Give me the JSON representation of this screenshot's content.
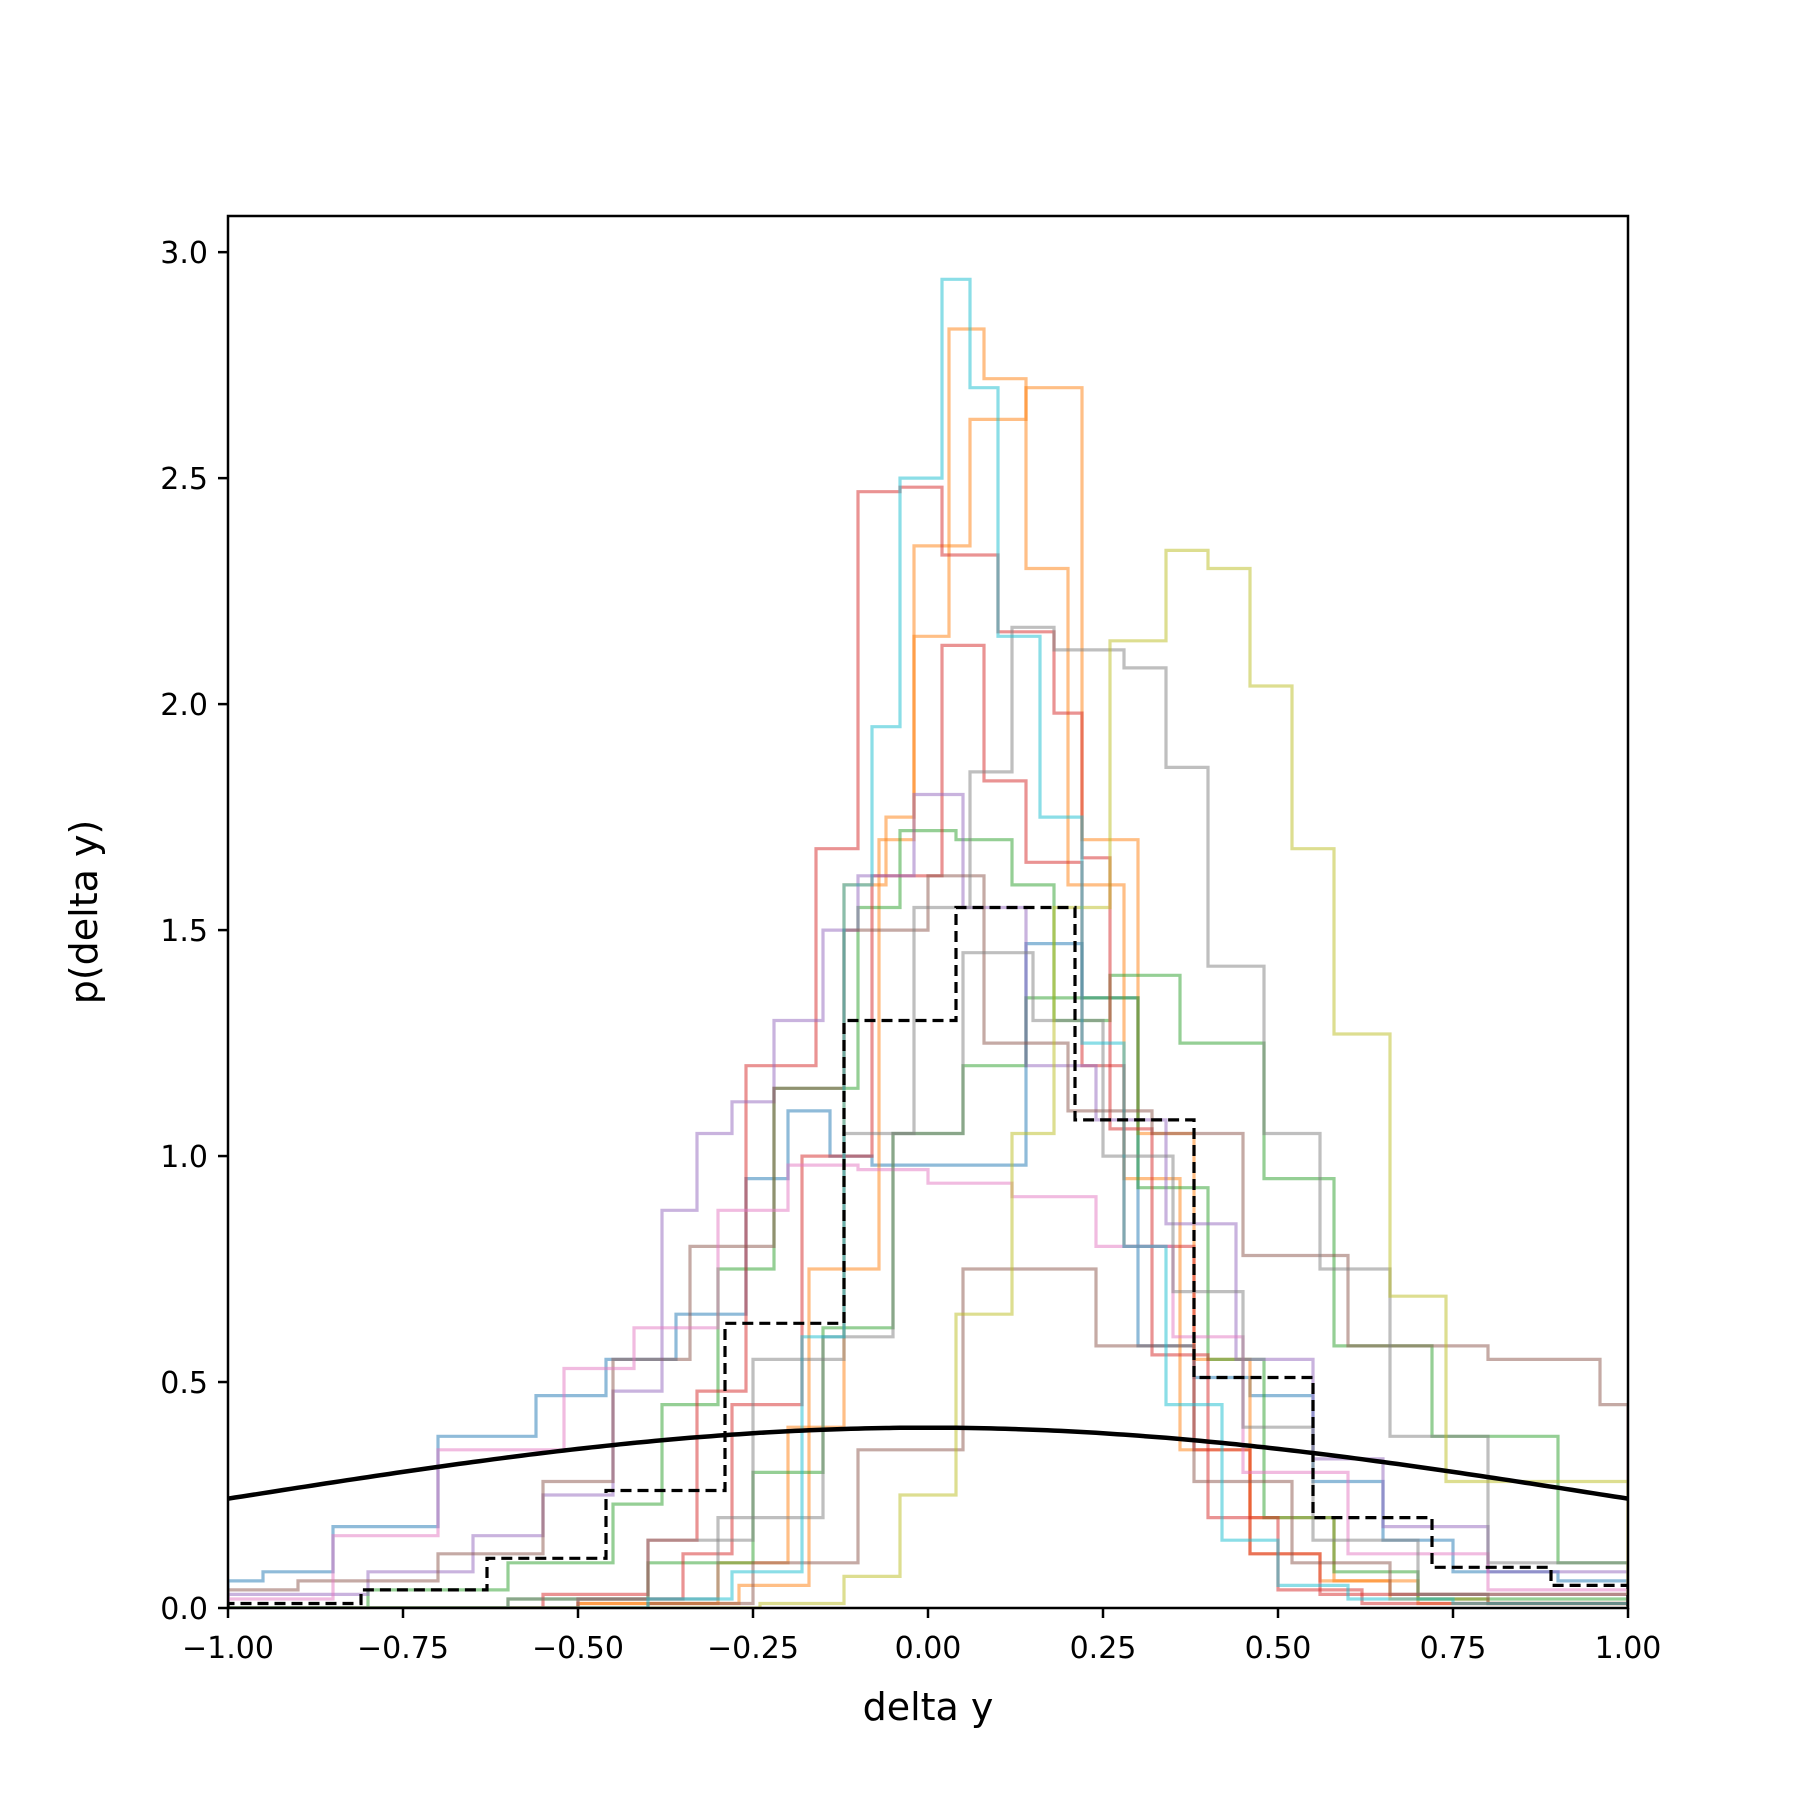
{
  "chart_data": {
    "type": "histogram",
    "title": "",
    "xlabel": "delta y",
    "ylabel": "p(delta y)",
    "xlim": [
      -1.0,
      1.0
    ],
    "ylim": [
      0.0,
      3.08
    ],
    "xticks": [
      -1.0,
      -0.75,
      -0.5,
      -0.25,
      0.0,
      0.25,
      0.5,
      0.75,
      1.0
    ],
    "xtick_labels": [
      "−1.00",
      "−0.75",
      "−0.50",
      "−0.25",
      "0.00",
      "0.25",
      "0.50",
      "0.75",
      "1.00"
    ],
    "yticks": [
      0.0,
      0.5,
      1.0,
      1.5,
      2.0,
      2.5,
      3.0
    ],
    "ytick_labels": [
      "0.0",
      "0.5",
      "1.0",
      "1.5",
      "2.0",
      "2.5",
      "3.0"
    ],
    "grid": false,
    "legend": "none",
    "series": [
      {
        "color": "#1f77b4",
        "edges": [
          -1.0,
          -0.95,
          -0.85,
          -0.7,
          -0.56,
          -0.46,
          -0.36,
          -0.26,
          -0.2,
          -0.14,
          -0.08,
          0.0,
          0.14,
          0.22,
          0.3,
          0.38,
          0.46,
          0.55,
          0.65,
          0.75,
          0.9,
          1.0
        ],
        "values": [
          0.06,
          0.08,
          0.18,
          0.38,
          0.47,
          0.55,
          0.65,
          0.95,
          1.1,
          1.0,
          0.98,
          0.98,
          1.47,
          1.35,
          0.58,
          0.51,
          0.47,
          0.28,
          0.15,
          0.08,
          0.06
        ]
      },
      {
        "color": "#ff7f0e",
        "edges": [
          -1.0,
          -0.5,
          -0.27,
          -0.17,
          -0.07,
          -0.02,
          0.03,
          0.08,
          0.14,
          0.2,
          0.28,
          0.36,
          0.46,
          0.56,
          0.66,
          0.8,
          1.0
        ],
        "values": [
          0.0,
          0.01,
          0.05,
          0.75,
          1.7,
          2.15,
          2.83,
          2.72,
          2.3,
          1.6,
          0.95,
          0.35,
          0.12,
          0.06,
          0.02,
          0.01
        ]
      },
      {
        "color": "#ff7f0e",
        "edges": [
          -1.0,
          -0.5,
          -0.3,
          -0.2,
          -0.12,
          -0.06,
          -0.02,
          0.06,
          0.14,
          0.22,
          0.3,
          0.38,
          0.46,
          0.58,
          0.7,
          1.0
        ],
        "values": [
          0.0,
          0.01,
          0.1,
          0.4,
          1.6,
          1.75,
          2.35,
          2.63,
          2.7,
          1.7,
          1.05,
          0.55,
          0.2,
          0.06,
          0.01
        ]
      },
      {
        "color": "#2ca02c",
        "edges": [
          -1.0,
          -0.8,
          -0.6,
          -0.45,
          -0.38,
          -0.3,
          -0.22,
          -0.1,
          -0.04,
          0.04,
          0.12,
          0.18,
          0.26,
          0.36,
          0.48,
          0.58,
          0.72,
          0.9,
          1.0
        ],
        "values": [
          0.0,
          0.04,
          0.1,
          0.23,
          0.45,
          0.75,
          1.15,
          1.55,
          1.72,
          1.7,
          1.6,
          1.3,
          1.4,
          1.25,
          0.95,
          0.58,
          0.38,
          0.1
        ]
      },
      {
        "color": "#2ca02c",
        "edges": [
          -1.0,
          -0.6,
          -0.4,
          -0.25,
          -0.15,
          -0.05,
          0.05,
          0.14,
          0.22,
          0.3,
          0.4,
          0.48,
          0.58,
          0.7,
          1.0
        ],
        "values": [
          0.0,
          0.02,
          0.1,
          0.3,
          0.62,
          1.05,
          1.2,
          1.35,
          1.35,
          0.93,
          0.55,
          0.2,
          0.08,
          0.02
        ]
      },
      {
        "color": "#d62728",
        "edges": [
          -1.0,
          -0.55,
          -0.4,
          -0.33,
          -0.26,
          -0.16,
          -0.1,
          -0.04,
          0.02,
          0.1,
          0.18,
          0.22,
          0.26,
          0.32,
          0.4,
          0.5,
          0.62,
          1.0
        ],
        "values": [
          0.0,
          0.03,
          0.15,
          0.48,
          1.2,
          1.68,
          2.47,
          2.48,
          2.33,
          2.16,
          1.98,
          1.66,
          1.06,
          0.56,
          0.2,
          0.04,
          0.01
        ]
      },
      {
        "color": "#d62728",
        "edges": [
          -1.0,
          -0.5,
          -0.35,
          -0.28,
          -0.18,
          -0.08,
          0.02,
          0.08,
          0.14,
          0.22,
          0.28,
          0.38,
          0.46,
          0.56,
          1.0
        ],
        "values": [
          0.0,
          0.02,
          0.12,
          0.45,
          1.0,
          1.62,
          2.13,
          1.83,
          1.65,
          1.2,
          0.8,
          0.35,
          0.12,
          0.03
        ]
      },
      {
        "color": "#9467bd",
        "edges": [
          -1.0,
          -0.8,
          -0.65,
          -0.55,
          -0.45,
          -0.38,
          -0.33,
          -0.28,
          -0.22,
          -0.15,
          -0.1,
          -0.02,
          0.05,
          0.14,
          0.24,
          0.34,
          0.44,
          0.55,
          0.65,
          0.8,
          1.0
        ],
        "values": [
          0.03,
          0.08,
          0.16,
          0.25,
          0.48,
          0.88,
          1.05,
          1.12,
          1.3,
          1.5,
          1.62,
          1.8,
          1.55,
          1.2,
          1.08,
          0.85,
          0.55,
          0.33,
          0.18,
          0.08
        ]
      },
      {
        "color": "#8c564b",
        "edges": [
          -1.0,
          -0.9,
          -0.7,
          -0.55,
          -0.45,
          -0.34,
          -0.22,
          -0.12,
          0.0,
          0.08,
          0.2,
          0.32,
          0.45,
          0.6,
          0.8,
          0.96,
          1.0
        ],
        "values": [
          0.04,
          0.06,
          0.12,
          0.28,
          0.55,
          0.8,
          1.15,
          1.5,
          1.62,
          1.25,
          1.1,
          1.05,
          0.78,
          0.58,
          0.55,
          0.45
        ]
      },
      {
        "color": "#8c564b",
        "edges": [
          -1.0,
          -0.4,
          -0.25,
          -0.1,
          0.05,
          0.12,
          0.24,
          0.38,
          0.52,
          0.66,
          0.8,
          1.0
        ],
        "values": [
          0.0,
          0.01,
          0.1,
          0.35,
          0.75,
          0.75,
          0.58,
          0.28,
          0.1,
          0.03,
          0.01
        ]
      },
      {
        "color": "#e377c2",
        "edges": [
          -1.0,
          -0.85,
          -0.7,
          -0.52,
          -0.42,
          -0.3,
          -0.2,
          -0.1,
          0.0,
          0.12,
          0.24,
          0.35,
          0.45,
          0.6,
          0.8,
          1.0
        ],
        "values": [
          0.02,
          0.16,
          0.35,
          0.53,
          0.62,
          0.88,
          0.98,
          0.97,
          0.94,
          0.91,
          0.8,
          0.6,
          0.3,
          0.12,
          0.04
        ]
      },
      {
        "color": "#7f7f7f",
        "edges": [
          -1.0,
          -0.6,
          -0.4,
          -0.25,
          -0.12,
          -0.02,
          0.06,
          0.12,
          0.18,
          0.28,
          0.34,
          0.4,
          0.48,
          0.56,
          0.66,
          0.8,
          1.0
        ],
        "values": [
          0.0,
          0.02,
          0.15,
          0.55,
          1.05,
          1.55,
          1.85,
          2.17,
          2.12,
          2.08,
          1.86,
          1.42,
          1.05,
          0.75,
          0.38,
          0.1
        ]
      },
      {
        "color": "#7f7f7f",
        "edges": [
          -1.0,
          -0.5,
          -0.3,
          -0.15,
          -0.05,
          0.05,
          0.15,
          0.25,
          0.35,
          0.45,
          0.55,
          0.7,
          1.0
        ],
        "values": [
          0.0,
          0.02,
          0.2,
          0.6,
          1.05,
          1.45,
          1.3,
          1.0,
          0.7,
          0.4,
          0.15,
          0.03
        ]
      },
      {
        "color": "#bcbd22",
        "edges": [
          -1.0,
          -0.24,
          -0.12,
          -0.04,
          0.04,
          0.12,
          0.18,
          0.26,
          0.34,
          0.4,
          0.46,
          0.52,
          0.58,
          0.66,
          0.74,
          1.0
        ],
        "values": [
          0.0,
          0.01,
          0.07,
          0.25,
          0.65,
          1.05,
          1.55,
          2.14,
          2.34,
          2.3,
          2.04,
          1.68,
          1.27,
          0.69,
          0.28
        ]
      },
      {
        "color": "#17becf",
        "edges": [
          -1.0,
          -0.4,
          -0.28,
          -0.18,
          -0.12,
          -0.08,
          -0.04,
          0.02,
          0.06,
          0.1,
          0.16,
          0.22,
          0.28,
          0.34,
          0.42,
          0.5,
          0.6,
          0.75,
          1.0
        ],
        "values": [
          0.0,
          0.02,
          0.08,
          0.6,
          1.6,
          1.95,
          2.5,
          2.94,
          2.7,
          2.15,
          1.75,
          1.25,
          0.8,
          0.45,
          0.15,
          0.05,
          0.02,
          0.01
        ]
      }
    ],
    "mean_histogram": {
      "color": "#000000",
      "style": "dashed",
      "edges": [
        -1.0,
        -0.81,
        -0.63,
        -0.46,
        -0.29,
        -0.12,
        0.04,
        0.21,
        0.38,
        0.55,
        0.72,
        0.89,
        1.0
      ],
      "values": [
        0.01,
        0.04,
        0.11,
        0.26,
        0.63,
        1.3,
        1.55,
        1.08,
        0.51,
        0.2,
        0.09,
        0.05
      ]
    },
    "reference_curve": {
      "color": "#000000",
      "type": "normal_pdf",
      "mean": 0.0,
      "std": 1.0
    }
  }
}
